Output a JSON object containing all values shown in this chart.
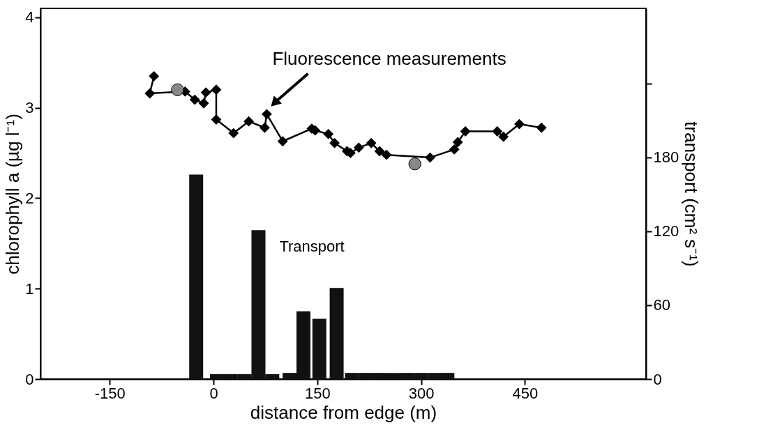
{
  "chart_data": {
    "type": "line",
    "xlabel": "distance from edge (m)",
    "ylabel": "chlorophyll a (µg l⁻¹)",
    "y2label": "transport (cm² s⁻¹)",
    "xlim": [
      -250,
      625
    ],
    "xticks": [
      -150,
      0,
      150,
      300,
      450
    ],
    "ylim": [
      0,
      4.1
    ],
    "yticks": [
      0,
      1,
      2,
      3,
      4
    ],
    "y2lim": [
      0,
      301
    ],
    "y2ticks": [
      0,
      60,
      120,
      180,
      {
        "value": 240,
        "label": null
      }
    ],
    "grid": false,
    "marker": "diamond",
    "line_style": "solid",
    "series": [
      {
        "color": "#000000",
        "x": [
          -86,
          -92,
          -41,
          -27,
          -14,
          -11,
          4,
          4,
          29,
          51,
          74,
          77,
          100,
          142,
          147,
          166,
          175,
          193,
          198,
          210,
          228,
          240,
          250,
          313,
          348,
          353,
          364,
          410,
          419,
          442,
          474
        ],
        "values": [
          3.35,
          3.16,
          3.18,
          3.09,
          3.05,
          3.17,
          3.2,
          2.87,
          2.72,
          2.85,
          2.78,
          2.93,
          2.63,
          2.77,
          2.75,
          2.71,
          2.61,
          2.52,
          2.5,
          2.56,
          2.61,
          2.52,
          2.48,
          2.45,
          2.54,
          2.62,
          2.74,
          2.74,
          2.68,
          2.82,
          2.78
        ]
      },
      {
        "type": "scatter",
        "color": "#888888",
        "marker": "circle",
        "x": [
          -52,
          291
        ],
        "values": [
          3.2,
          2.38
        ]
      },
      {
        "type": "bar",
        "axis": "y2",
        "color": "#111111",
        "x": [
          -25,
          5,
          25,
          45,
          65,
          85,
          110,
          130,
          153,
          178,
          200,
          220,
          240,
          260,
          280,
          300,
          320,
          338
        ],
        "values": [
          166,
          4,
          4,
          4,
          121,
          4,
          5,
          55,
          49,
          74,
          5,
          5,
          5,
          5,
          5,
          5,
          5,
          5
        ]
      }
    ],
    "annotations": [
      {
        "text": "Fluorescence measurements",
        "x": 77,
        "y": 2.93
      },
      {
        "text": "Transport",
        "x": 75,
        "y": 1.63
      }
    ]
  }
}
